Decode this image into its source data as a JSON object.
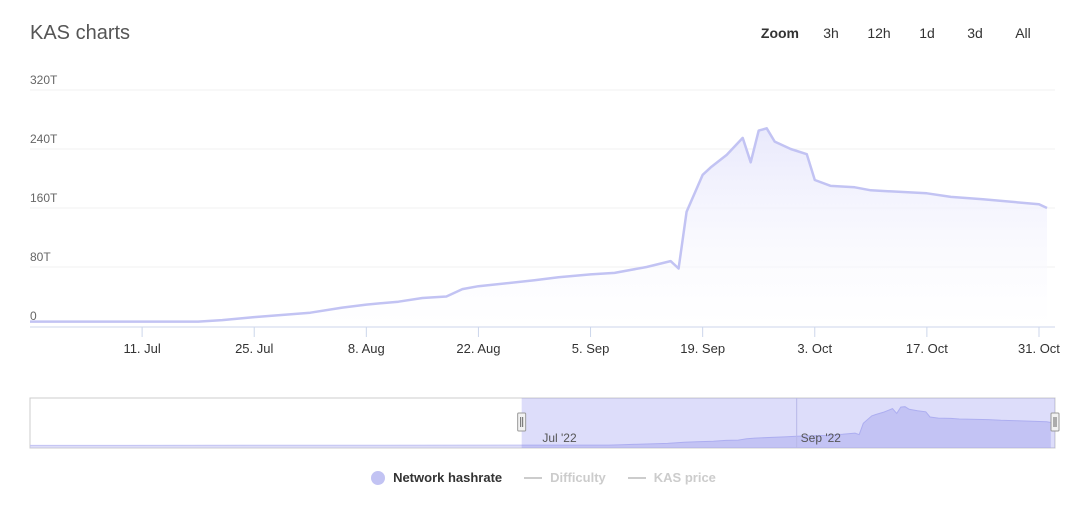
{
  "title": "KAS charts",
  "zoom": {
    "label": "Zoom",
    "buttons": [
      "3h",
      "12h",
      "1d",
      "3d",
      "All"
    ]
  },
  "legend": {
    "items": [
      {
        "name": "Network hashrate",
        "active": true
      },
      {
        "name": "Difficulty",
        "active": false
      },
      {
        "name": "KAS price",
        "active": false
      }
    ]
  },
  "navigator": {
    "labels": [
      "Jul '22",
      "Sep '22"
    ]
  },
  "colors": {
    "series": "#c2c3f3",
    "fill": "#e9e9fc",
    "navigator_mask": "rgba(102,102,230,0.22)"
  },
  "chart_data": {
    "type": "area",
    "title": "KAS charts",
    "xlabel": "",
    "ylabel": "",
    "x_ticks": [
      "11. Jul",
      "25. Jul",
      "8. Aug",
      "22. Aug",
      "5. Sep",
      "19. Sep",
      "3. Oct",
      "17. Oct",
      "31. Oct"
    ],
    "y_ticks": [
      "0",
      "80T",
      "160T",
      "240T",
      "320T"
    ],
    "ylim": [
      0,
      320
    ],
    "y_unit": "T",
    "grid": true,
    "legend_position": "bottom",
    "series": [
      {
        "name": "Network hashrate",
        "x": [
          "2022-06-27",
          "2022-07-04",
          "2022-07-11",
          "2022-07-18",
          "2022-07-21",
          "2022-07-25",
          "2022-08-01",
          "2022-08-05",
          "2022-08-08",
          "2022-08-12",
          "2022-08-15",
          "2022-08-18",
          "2022-08-20",
          "2022-08-22",
          "2022-08-29",
          "2022-09-01",
          "2022-09-05",
          "2022-09-08",
          "2022-09-12",
          "2022-09-15",
          "2022-09-16",
          "2022-09-17",
          "2022-09-19",
          "2022-09-20",
          "2022-09-22",
          "2022-09-24",
          "2022-09-25",
          "2022-09-26",
          "2022-09-27",
          "2022-09-28",
          "2022-09-30",
          "2022-10-02",
          "2022-10-03",
          "2022-10-05",
          "2022-10-08",
          "2022-10-10",
          "2022-10-17",
          "2022-10-20",
          "2022-10-24",
          "2022-10-31",
          "2022-11-01"
        ],
        "values": [
          6,
          6,
          6,
          6,
          8,
          12,
          18,
          25,
          29,
          33,
          38,
          40,
          50,
          54,
          62,
          66,
          70,
          72,
          80,
          88,
          78,
          155,
          205,
          215,
          232,
          255,
          222,
          265,
          268,
          250,
          240,
          233,
          198,
          190,
          188,
          184,
          180,
          175,
          172,
          165,
          160
        ]
      }
    ]
  }
}
